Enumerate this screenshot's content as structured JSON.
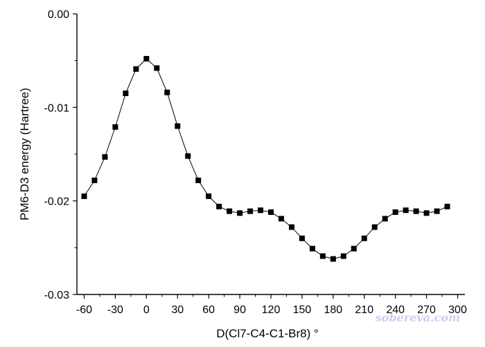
{
  "chart_data": {
    "type": "line",
    "title": "",
    "xlabel": "D(Cl7-C4-C1-Br8) °",
    "ylabel": "PM6-D3 energy (Hartree)",
    "xlim": [
      -67,
      307
    ],
    "ylim": [
      -0.03,
      0.0
    ],
    "x_ticks": [
      -60,
      -30,
      0,
      30,
      60,
      90,
      120,
      150,
      180,
      210,
      240,
      270,
      300
    ],
    "x_tick_labels": [
      "-60",
      "-30",
      "0",
      "30",
      "60",
      "90",
      "120",
      "150",
      "180",
      "210",
      "240",
      "270",
      "300"
    ],
    "y_ticks": [
      0.0,
      -0.01,
      -0.02,
      -0.03
    ],
    "y_tick_labels": [
      "0.00",
      "-0.01",
      "-0.02",
      "-0.03"
    ],
    "y_minor_ticks": [
      -0.005,
      -0.015,
      -0.025
    ],
    "grid": false,
    "legend": "none",
    "marker": "square",
    "colors": {
      "line": "#000000",
      "marker": "#000000"
    },
    "series": [
      {
        "x": [
          -60,
          -50,
          -40,
          -30,
          -20,
          -10,
          0,
          10,
          20,
          30,
          40,
          50,
          60,
          70,
          80,
          90,
          100,
          110,
          120,
          130,
          140,
          150,
          160,
          170,
          180,
          190,
          200,
          210,
          220,
          230,
          240,
          250,
          260,
          270,
          280,
          290
        ],
        "y": [
          -0.0195,
          -0.0178,
          -0.0153,
          -0.0121,
          -0.0085,
          -0.0059,
          -0.0048,
          -0.0058,
          -0.0084,
          -0.012,
          -0.0152,
          -0.0178,
          -0.0195,
          -0.0206,
          -0.0211,
          -0.0213,
          -0.0211,
          -0.021,
          -0.0212,
          -0.0219,
          -0.0228,
          -0.024,
          -0.0251,
          -0.0259,
          -0.0262,
          -0.0259,
          -0.0251,
          -0.024,
          -0.0228,
          -0.0219,
          -0.0212,
          -0.021,
          -0.0211,
          -0.0213,
          -0.0211,
          -0.0206
        ]
      }
    ]
  },
  "watermark": "sobereva.com"
}
